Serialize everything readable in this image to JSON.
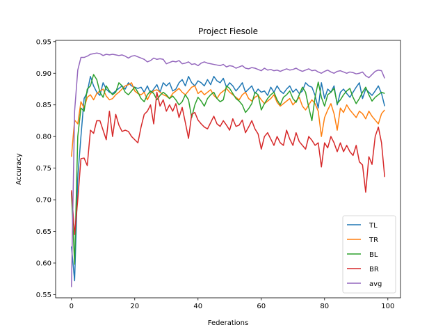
{
  "chart_data": {
    "type": "line",
    "title": "Project Fiesole",
    "xlabel": "Federations",
    "ylabel": "Accuracy",
    "xlim": [
      -5,
      104
    ],
    "ylim": [
      0.545,
      0.952
    ],
    "xticks": [
      0,
      20,
      40,
      60,
      80,
      100
    ],
    "yticks": [
      0.55,
      0.6,
      0.65,
      0.7,
      0.75,
      0.8,
      0.85,
      0.9,
      0.95
    ],
    "legend_position": "lower-right",
    "grid": false,
    "series": [
      {
        "name": "TL",
        "color": "#1f77b4",
        "values": [
          0.626,
          0.572,
          0.735,
          0.8,
          0.86,
          0.87,
          0.895,
          0.88,
          0.87,
          0.865,
          0.885,
          0.875,
          0.87,
          0.868,
          0.872,
          0.876,
          0.88,
          0.875,
          0.885,
          0.88,
          0.878,
          0.876,
          0.878,
          0.87,
          0.88,
          0.868,
          0.875,
          0.882,
          0.87,
          0.885,
          0.88,
          0.885,
          0.872,
          0.875,
          0.885,
          0.89,
          0.88,
          0.895,
          0.885,
          0.88,
          0.888,
          0.885,
          0.88,
          0.89,
          0.882,
          0.895,
          0.888,
          0.885,
          0.892,
          0.878,
          0.885,
          0.88,
          0.872,
          0.878,
          0.885,
          0.87,
          0.875,
          0.88,
          0.868,
          0.875,
          0.87,
          0.872,
          0.865,
          0.878,
          0.87,
          0.88,
          0.872,
          0.868,
          0.875,
          0.88,
          0.87,
          0.875,
          0.868,
          0.872,
          0.885,
          0.88,
          0.878,
          0.865,
          0.845,
          0.885,
          0.86,
          0.875,
          0.87,
          0.88,
          0.85,
          0.87,
          0.875,
          0.868,
          0.862,
          0.87,
          0.878,
          0.885,
          0.86,
          0.875,
          0.87,
          0.865,
          0.872,
          0.88,
          0.868,
          0.848
        ]
      },
      {
        "name": "TR",
        "color": "#ff7f0e",
        "values": [
          0.768,
          0.826,
          0.82,
          0.855,
          0.845,
          0.862,
          0.866,
          0.858,
          0.868,
          0.872,
          0.875,
          0.864,
          0.858,
          0.86,
          0.866,
          0.87,
          0.875,
          0.88,
          0.882,
          0.885,
          0.872,
          0.868,
          0.866,
          0.87,
          0.858,
          0.868,
          0.872,
          0.874,
          0.87,
          0.866,
          0.864,
          0.86,
          0.868,
          0.872,
          0.876,
          0.87,
          0.866,
          0.872,
          0.878,
          0.88,
          0.868,
          0.872,
          0.866,
          0.87,
          0.874,
          0.865,
          0.86,
          0.868,
          0.872,
          0.876,
          0.87,
          0.866,
          0.862,
          0.858,
          0.866,
          0.87,
          0.86,
          0.856,
          0.862,
          0.865,
          0.858,
          0.852,
          0.856,
          0.86,
          0.866,
          0.854,
          0.848,
          0.852,
          0.856,
          0.86,
          0.85,
          0.856,
          0.862,
          0.848,
          0.842,
          0.85,
          0.858,
          0.852,
          0.84,
          0.8,
          0.83,
          0.842,
          0.852,
          0.836,
          0.81,
          0.845,
          0.838,
          0.85,
          0.842,
          0.836,
          0.83,
          0.84,
          0.836,
          0.828,
          0.84,
          0.832,
          0.826,
          0.82,
          0.836,
          0.842
        ]
      },
      {
        "name": "BL",
        "color": "#2ca02c",
        "values": [
          0.712,
          0.598,
          0.8,
          0.845,
          0.84,
          0.875,
          0.88,
          0.898,
          0.89,
          0.87,
          0.862,
          0.88,
          0.872,
          0.866,
          0.87,
          0.885,
          0.88,
          0.87,
          0.866,
          0.872,
          0.878,
          0.87,
          0.86,
          0.855,
          0.866,
          0.872,
          0.868,
          0.858,
          0.865,
          0.87,
          0.866,
          0.86,
          0.864,
          0.858,
          0.85,
          0.855,
          0.866,
          0.858,
          0.83,
          0.85,
          0.862,
          0.856,
          0.848,
          0.86,
          0.866,
          0.87,
          0.86,
          0.855,
          0.858,
          0.88,
          0.876,
          0.868,
          0.86,
          0.856,
          0.85,
          0.838,
          0.844,
          0.852,
          0.87,
          0.866,
          0.842,
          0.852,
          0.86,
          0.866,
          0.87,
          0.858,
          0.85,
          0.862,
          0.866,
          0.872,
          0.86,
          0.854,
          0.866,
          0.878,
          0.87,
          0.846,
          0.825,
          0.862,
          0.886,
          0.862,
          0.848,
          0.866,
          0.87,
          0.876,
          0.852,
          0.858,
          0.866,
          0.872,
          0.876,
          0.862,
          0.852,
          0.86,
          0.87,
          0.878,
          0.866,
          0.856,
          0.862,
          0.866,
          0.87,
          0.868
        ]
      },
      {
        "name": "BR",
        "color": "#d62728",
        "values": [
          0.715,
          0.645,
          0.7,
          0.765,
          0.766,
          0.754,
          0.81,
          0.805,
          0.825,
          0.825,
          0.81,
          0.795,
          0.84,
          0.8,
          0.835,
          0.818,
          0.808,
          0.81,
          0.808,
          0.8,
          0.795,
          0.79,
          0.815,
          0.835,
          0.84,
          0.85,
          0.82,
          0.87,
          0.848,
          0.858,
          0.84,
          0.85,
          0.84,
          0.852,
          0.83,
          0.846,
          0.822,
          0.797,
          0.835,
          0.838,
          0.826,
          0.82,
          0.815,
          0.812,
          0.822,
          0.832,
          0.82,
          0.816,
          0.825,
          0.818,
          0.81,
          0.828,
          0.816,
          0.818,
          0.826,
          0.806,
          0.815,
          0.825,
          0.812,
          0.804,
          0.78,
          0.8,
          0.806,
          0.796,
          0.786,
          0.8,
          0.79,
          0.786,
          0.81,
          0.796,
          0.786,
          0.806,
          0.792,
          0.786,
          0.78,
          0.8,
          0.794,
          0.786,
          0.79,
          0.752,
          0.79,
          0.782,
          0.8,
          0.79,
          0.776,
          0.79,
          0.776,
          0.786,
          0.776,
          0.77,
          0.786,
          0.76,
          0.755,
          0.712,
          0.768,
          0.756,
          0.8,
          0.815,
          0.79,
          0.736
        ]
      },
      {
        "name": "avg",
        "color": "#9467bd",
        "values": [
          0.562,
          0.84,
          0.905,
          0.925,
          0.925,
          0.927,
          0.93,
          0.931,
          0.932,
          0.931,
          0.928,
          0.93,
          0.929,
          0.93,
          0.929,
          0.928,
          0.929,
          0.927,
          0.924,
          0.927,
          0.928,
          0.926,
          0.924,
          0.922,
          0.918,
          0.92,
          0.924,
          0.922,
          0.923,
          0.922,
          0.915,
          0.917,
          0.919,
          0.918,
          0.92,
          0.915,
          0.916,
          0.918,
          0.914,
          0.915,
          0.912,
          0.916,
          0.918,
          0.916,
          0.915,
          0.914,
          0.913,
          0.912,
          0.914,
          0.91,
          0.912,
          0.911,
          0.908,
          0.91,
          0.912,
          0.908,
          0.907,
          0.909,
          0.908,
          0.906,
          0.904,
          0.908,
          0.905,
          0.906,
          0.904,
          0.905,
          0.903,
          0.905,
          0.907,
          0.905,
          0.906,
          0.908,
          0.905,
          0.903,
          0.905,
          0.907,
          0.904,
          0.905,
          0.902,
          0.9,
          0.903,
          0.905,
          0.902,
          0.9,
          0.903,
          0.904,
          0.902,
          0.9,
          0.902,
          0.901,
          0.899,
          0.9,
          0.902,
          0.896,
          0.893,
          0.898,
          0.903,
          0.905,
          0.904,
          0.892
        ]
      }
    ]
  }
}
